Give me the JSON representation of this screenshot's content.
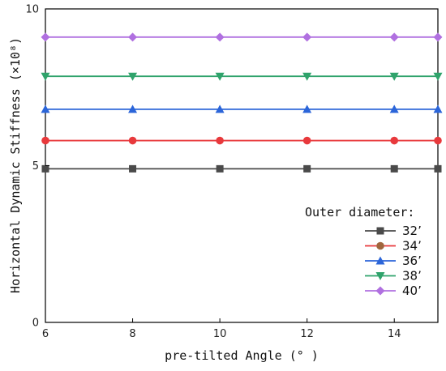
{
  "chart_data": {
    "type": "line",
    "xlabel": "pre-tilted Angle (° )",
    "ylabel": "Horizontal Dynamic Stiffness (×10⁸)",
    "xlim": [
      6,
      15
    ],
    "ylim": [
      0,
      10
    ],
    "x_ticks": [
      "6",
      "8",
      "10",
      "12",
      "14"
    ],
    "y_ticks": [
      "0",
      "5",
      "10"
    ],
    "x": [
      6,
      8,
      10,
      12,
      14,
      15
    ],
    "legend_title": "Outer diameter:",
    "legend_position": "bottom-right",
    "grid": false,
    "series": [
      {
        "name": "32’",
        "color": "#4a4a4a",
        "marker": "square",
        "values": [
          4.9,
          4.9,
          4.9,
          4.9,
          4.9,
          4.9
        ]
      },
      {
        "name": "34’",
        "color": "#e8393c",
        "marker": "circle",
        "values": [
          5.8,
          5.8,
          5.8,
          5.8,
          5.8,
          5.8
        ]
      },
      {
        "name": "36’",
        "color": "#2b65d9",
        "marker": "triangle-up",
        "values": [
          6.8,
          6.8,
          6.8,
          6.8,
          6.8,
          6.8
        ]
      },
      {
        "name": "38’",
        "color": "#2fa36b",
        "marker": "triangle-down",
        "values": [
          7.85,
          7.85,
          7.85,
          7.85,
          7.85,
          7.85
        ]
      },
      {
        "name": "40’",
        "color": "#b070e0",
        "marker": "diamond",
        "values": [
          9.1,
          9.1,
          9.1,
          9.1,
          9.1,
          9.1
        ]
      }
    ],
    "legend_marker_colors": [
      "#4a4a4a",
      "#a0663d",
      "#2b65d9",
      "#2fa36b",
      "#b070e0"
    ]
  }
}
